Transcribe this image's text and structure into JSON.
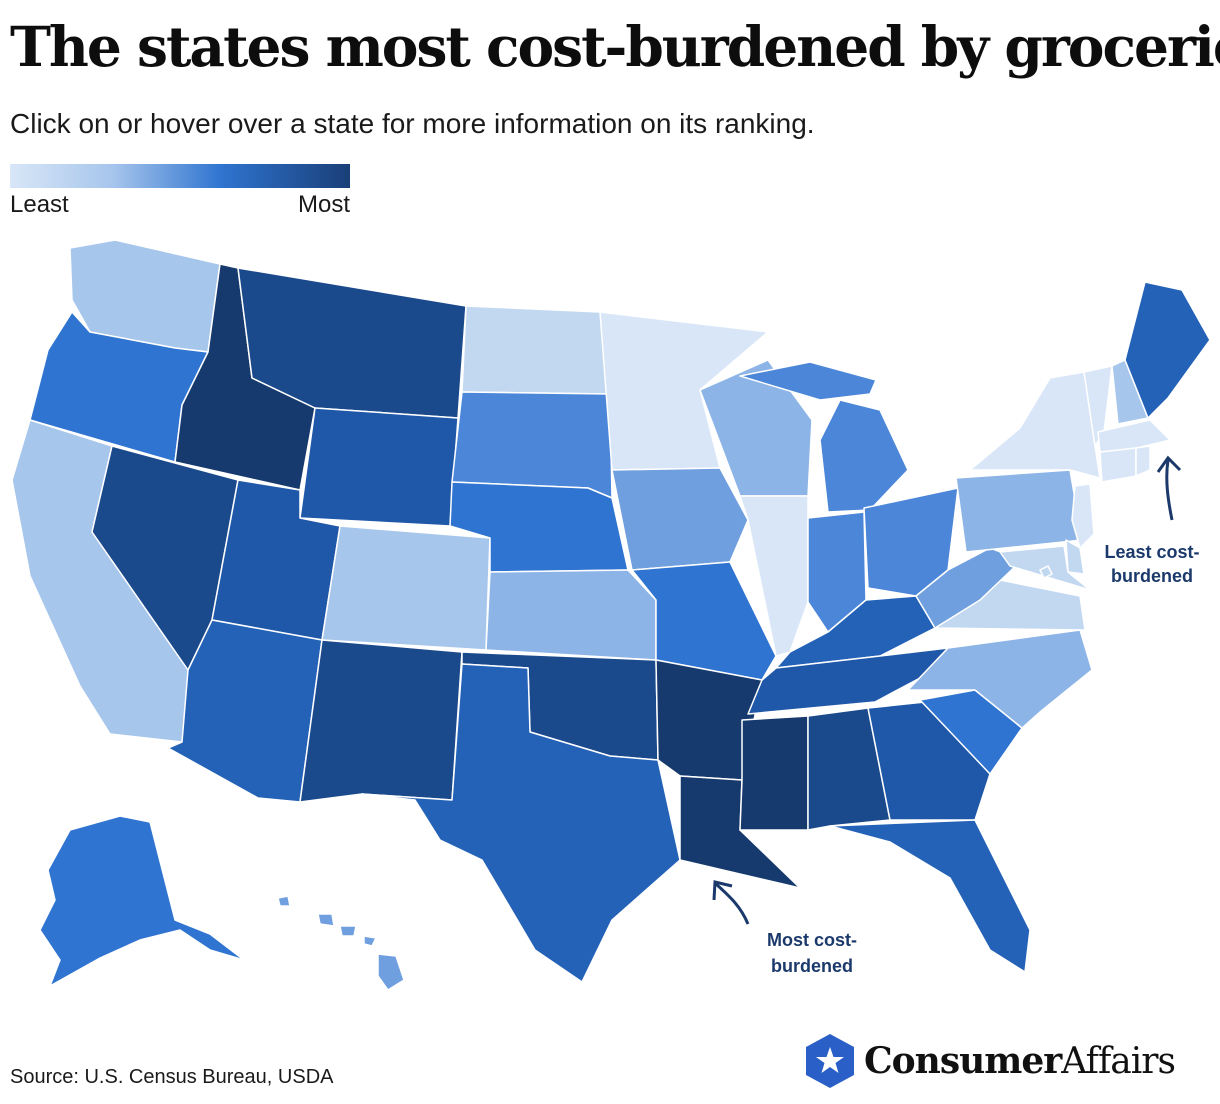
{
  "header": {
    "title": "The states most cost-burdened by groceries",
    "subtitle": "Click on or hover over a state for more information on its ranking."
  },
  "legend": {
    "low_label": "Least",
    "high_label": "Most",
    "colors": [
      "#d8e6f7",
      "#a7c6ec",
      "#2f74d0",
      "#1a3f78"
    ]
  },
  "annotations": {
    "least_line1": "Least cost-",
    "least_line2": "burdened",
    "most_line1": "Most cost-",
    "most_line2": "burdened",
    "color": "#1b3a6b"
  },
  "footer": {
    "source": "Source: U.S. Census Bureau, USDA",
    "logo_part1": "Consumer",
    "logo_part2": "Affairs",
    "logo_icon": "star-shield-icon",
    "logo_color": "#2a5fc7"
  },
  "map_data": {
    "scale": "least-to-most cost-burdened",
    "palette": {
      "1": "#d8e6f7",
      "2": "#c2d8f1",
      "3": "#a7c6ec",
      "4": "#8db4e6",
      "5": "#6f9fde",
      "6": "#4b86d8",
      "7": "#2f74d0",
      "8": "#2462b8",
      "9": "#1f58a8",
      "10": "#1b4a8c",
      "11": "#163a6e"
    },
    "states": [
      {
        "id": "WA",
        "level": 3
      },
      {
        "id": "OR",
        "level": 7
      },
      {
        "id": "CA",
        "level": 3
      },
      {
        "id": "ID",
        "level": 11
      },
      {
        "id": "NV",
        "level": 10
      },
      {
        "id": "MT",
        "level": 10
      },
      {
        "id": "WY",
        "level": 9
      },
      {
        "id": "UT",
        "level": 9
      },
      {
        "id": "AZ",
        "level": 8
      },
      {
        "id": "CO",
        "level": 3
      },
      {
        "id": "NM",
        "level": 10
      },
      {
        "id": "ND",
        "level": 2
      },
      {
        "id": "SD",
        "level": 6
      },
      {
        "id": "NE",
        "level": 7
      },
      {
        "id": "KS",
        "level": 4
      },
      {
        "id": "OK",
        "level": 10
      },
      {
        "id": "TX",
        "level": 8
      },
      {
        "id": "MN",
        "level": 1
      },
      {
        "id": "IA",
        "level": 5
      },
      {
        "id": "MO",
        "level": 7
      },
      {
        "id": "AR",
        "level": 11
      },
      {
        "id": "LA",
        "level": 11
      },
      {
        "id": "WI",
        "level": 4
      },
      {
        "id": "IL",
        "level": 1
      },
      {
        "id": "MI",
        "level": 6
      },
      {
        "id": "IN",
        "level": 6
      },
      {
        "id": "OH",
        "level": 6
      },
      {
        "id": "KY",
        "level": 8
      },
      {
        "id": "TN",
        "level": 9
      },
      {
        "id": "MS",
        "level": 11
      },
      {
        "id": "AL",
        "level": 10
      },
      {
        "id": "GA",
        "level": 9
      },
      {
        "id": "FL",
        "level": 8
      },
      {
        "id": "SC",
        "level": 7
      },
      {
        "id": "NC",
        "level": 4
      },
      {
        "id": "VA",
        "level": 2
      },
      {
        "id": "WV",
        "level": 5
      },
      {
        "id": "PA",
        "level": 4
      },
      {
        "id": "NY",
        "level": 1
      },
      {
        "id": "VT",
        "level": 1
      },
      {
        "id": "NH",
        "level": 3
      },
      {
        "id": "ME",
        "level": 8
      },
      {
        "id": "MA",
        "level": 1
      },
      {
        "id": "CT",
        "level": 1
      },
      {
        "id": "RI",
        "level": 1
      },
      {
        "id": "NJ",
        "level": 1
      },
      {
        "id": "DE",
        "level": 2
      },
      {
        "id": "MD",
        "level": 2
      },
      {
        "id": "DC",
        "level": 2
      },
      {
        "id": "AK",
        "level": 7
      },
      {
        "id": "HI",
        "level": 5
      }
    ]
  }
}
